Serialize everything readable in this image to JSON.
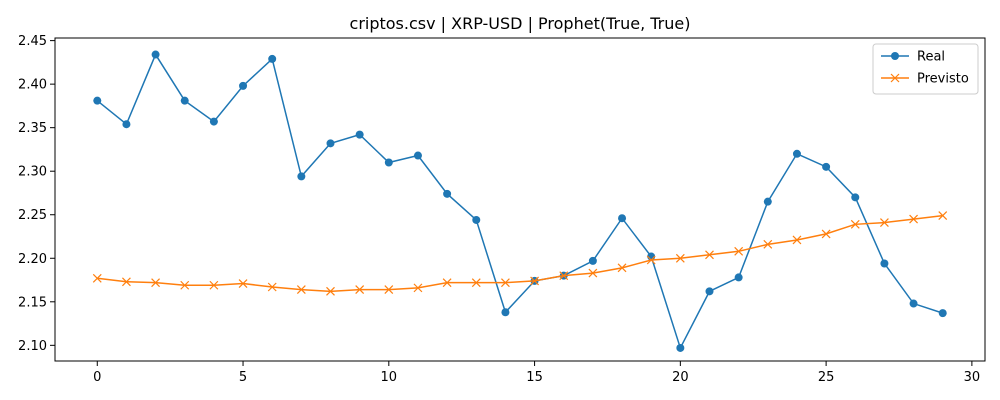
{
  "chart_data": {
    "type": "line",
    "title": "criptos.csv | XRP-USD | Prophet(True, True)",
    "xlabel": "",
    "ylabel": "",
    "xlim": [
      -1.45,
      30.45
    ],
    "ylim": [
      2.082,
      2.453
    ],
    "xticks": [
      0,
      5,
      10,
      15,
      20,
      25,
      30
    ],
    "yticks": [
      2.1,
      2.15,
      2.2,
      2.25,
      2.3,
      2.35,
      2.4,
      2.45
    ],
    "grid": false,
    "legend_position": "top-right",
    "x": [
      0,
      1,
      2,
      3,
      4,
      5,
      6,
      7,
      8,
      9,
      10,
      11,
      12,
      13,
      14,
      15,
      16,
      17,
      18,
      19,
      20,
      21,
      22,
      23,
      24,
      25,
      26,
      27,
      28,
      29
    ],
    "series": [
      {
        "name": "Real",
        "color": "#1f77b4",
        "marker": "circle",
        "values": [
          2.381,
          2.354,
          2.434,
          2.381,
          2.357,
          2.398,
          2.429,
          2.294,
          2.332,
          2.342,
          2.31,
          2.318,
          2.274,
          2.244,
          2.138,
          2.174,
          2.18,
          2.197,
          2.246,
          2.202,
          2.097,
          2.162,
          2.178,
          2.265,
          2.32,
          2.305,
          2.27,
          2.194,
          2.148,
          2.137
        ]
      },
      {
        "name": "Previsto",
        "color": "#ff7f0e",
        "marker": "x",
        "values": [
          2.177,
          2.173,
          2.172,
          2.169,
          2.169,
          2.171,
          2.167,
          2.164,
          2.162,
          2.164,
          2.164,
          2.166,
          2.172,
          2.172,
          2.172,
          2.174,
          2.18,
          2.183,
          2.189,
          2.198,
          2.2,
          2.204,
          2.208,
          2.216,
          2.221,
          2.228,
          2.239,
          2.241,
          2.245,
          2.249
        ]
      }
    ]
  }
}
